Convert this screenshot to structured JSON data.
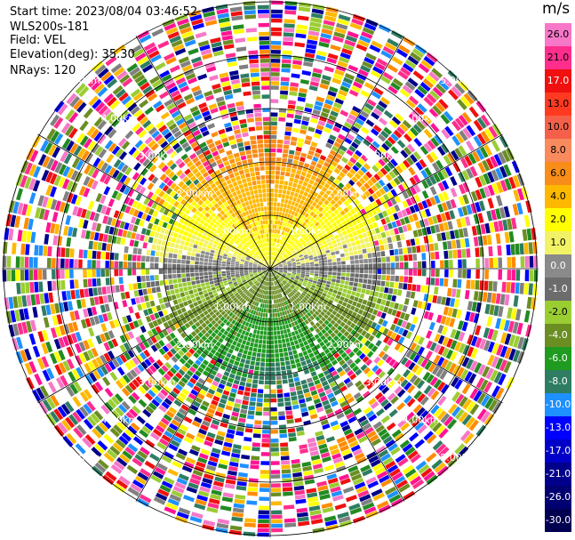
{
  "header": {
    "start_time": "Start time: 2023/08/04 03:46:52",
    "instrument": "WLS200s-181",
    "field": "Field: VEL",
    "elevation": "Elevation(deg): 35.30",
    "nrays": "NRays: 120"
  },
  "chart_data": {
    "type": "heatmap",
    "projection": "polar-ppi",
    "rings": [
      {
        "label": "1.00km",
        "km": 1.0
      },
      {
        "label": "2.00km",
        "km": 2.0
      },
      {
        "label": "3.00km",
        "km": 3.0
      },
      {
        "label": "4.00km",
        "km": 4.0
      },
      {
        "label": "5.00km",
        "km": 5.0
      }
    ],
    "colorbar": {
      "title": "m/s",
      "levels": [
        {
          "label": "26.0",
          "color": "#f777c8"
        },
        {
          "label": "21.0",
          "color": "#ff2d8c"
        },
        {
          "label": "17.0",
          "color": "#f01010"
        },
        {
          "label": "13.0",
          "color": "#ff3a20"
        },
        {
          "label": "10.0",
          "color": "#f5604a"
        },
        {
          "label": "8.0",
          "color": "#f88a5e"
        },
        {
          "label": "6.0",
          "color": "#f98d1a"
        },
        {
          "label": "4.0",
          "color": "#ffb800"
        },
        {
          "label": "2.0",
          "color": "#ffff00"
        },
        {
          "label": "1.0",
          "color": "#f2f266"
        },
        {
          "label": "0.0",
          "color": "#8a8a8a"
        },
        {
          "label": "-1.0",
          "color": "#6c6c6c"
        },
        {
          "label": "-2.0",
          "color": "#9acd32"
        },
        {
          "label": "-4.0",
          "color": "#6b8e23"
        },
        {
          "label": "-6.0",
          "color": "#1f9b1f"
        },
        {
          "label": "-8.0",
          "color": "#2e7d62"
        },
        {
          "label": "-10.0",
          "color": "#1e90ff"
        },
        {
          "label": "-13.0",
          "color": "#0000ff"
        },
        {
          "label": "-17.0",
          "color": "#0000c8"
        },
        {
          "label": "-21.0",
          "color": "#00008b"
        },
        {
          "label": "-26.0",
          "color": "#000070"
        },
        {
          "label": "-30.0",
          "color": "#000050"
        }
      ]
    },
    "noise_palette": [
      "#ff2d8c",
      "#ff1493",
      "#ffff00",
      "#228b22",
      "#0000ff",
      "#9acd32",
      "#f01010",
      "#ff8c00",
      "#6b8e23",
      "#00008b",
      "#f777c8",
      "#1e90ff",
      "#808080",
      "#ffb800",
      "#2e7d62"
    ]
  }
}
